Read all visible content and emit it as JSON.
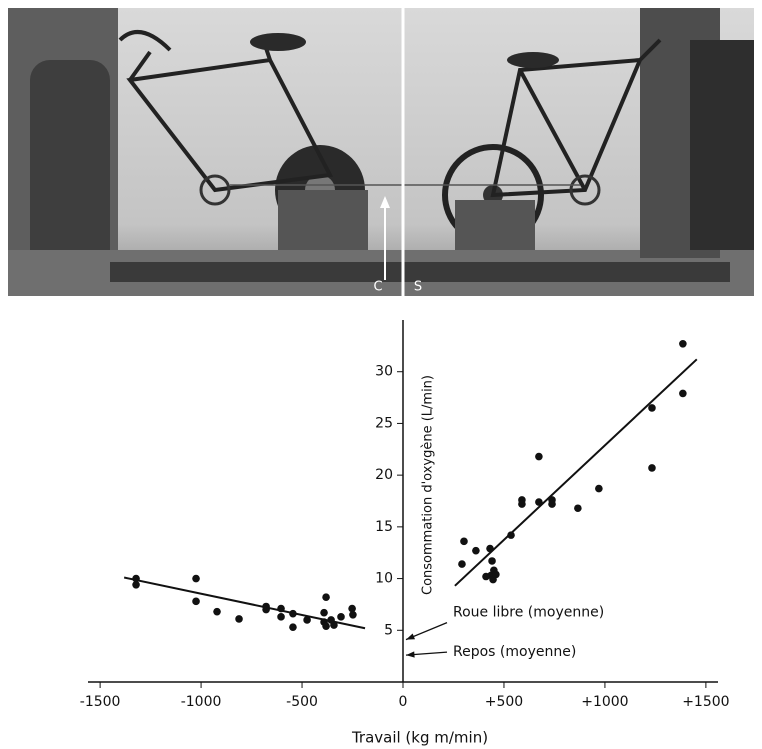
{
  "chart_data": {
    "type": "scatter",
    "photo_labels": [
      "C",
      "S"
    ],
    "y_label": "Consommation d'oxygène (L/min)",
    "x_label": "Travail (kg m/min)",
    "xlim": [
      -1560,
      1560
    ],
    "ylim": [
      0,
      35
    ],
    "xticks": [
      -1500,
      -1000,
      -500,
      0,
      {
        "value": 500,
        "label": "+500"
      },
      {
        "value": 1000,
        "label": "+1000"
      },
      {
        "value": 1500,
        "label": "+1500"
      }
    ],
    "yticks": [
      5,
      10,
      15,
      20,
      25,
      30
    ],
    "color": "#111111",
    "x": [
      -1322,
      -1322,
      -1025,
      -1025,
      -921,
      -812,
      -678,
      -678,
      -604,
      -604,
      -545,
      -545,
      -475,
      -381,
      -391,
      -391,
      -381,
      -342,
      -307,
      -252,
      -248,
      -356,
      302,
      292,
      361,
      431,
      441,
      436,
      411,
      446,
      450,
      460,
      535,
      589,
      589,
      673,
      673,
      738,
      738,
      866,
      970,
      1233,
      1233,
      1386,
      1386
    ],
    "y": [
      10.0,
      9.4,
      10.0,
      7.8,
      6.8,
      6.1,
      7.3,
      7.0,
      7.1,
      6.3,
      6.6,
      5.3,
      6.0,
      8.2,
      6.7,
      5.8,
      5.4,
      5.5,
      6.3,
      7.1,
      6.5,
      6.0,
      13.6,
      11.4,
      12.7,
      12.9,
      11.7,
      10.3,
      10.2,
      9.9,
      10.8,
      10.4,
      14.2,
      17.6,
      17.2,
      21.8,
      17.4,
      17.6,
      17.2,
      16.8,
      18.7,
      26.5,
      20.7,
      32.7,
      27.9
    ],
    "fit_lines": [
      {
        "x": [
          -1381,
          -188
        ],
        "y": [
          10.1,
          5.2
        ]
      },
      {
        "x": [
          257,
          1455
        ],
        "y": [
          9.3,
          31.2
        ]
      }
    ],
    "annotations": [
      {
        "text": "Roue libre (moyenne)",
        "y": 4.1
      },
      {
        "text": "Repos (moyenne)",
        "y": 2.6
      }
    ]
  }
}
